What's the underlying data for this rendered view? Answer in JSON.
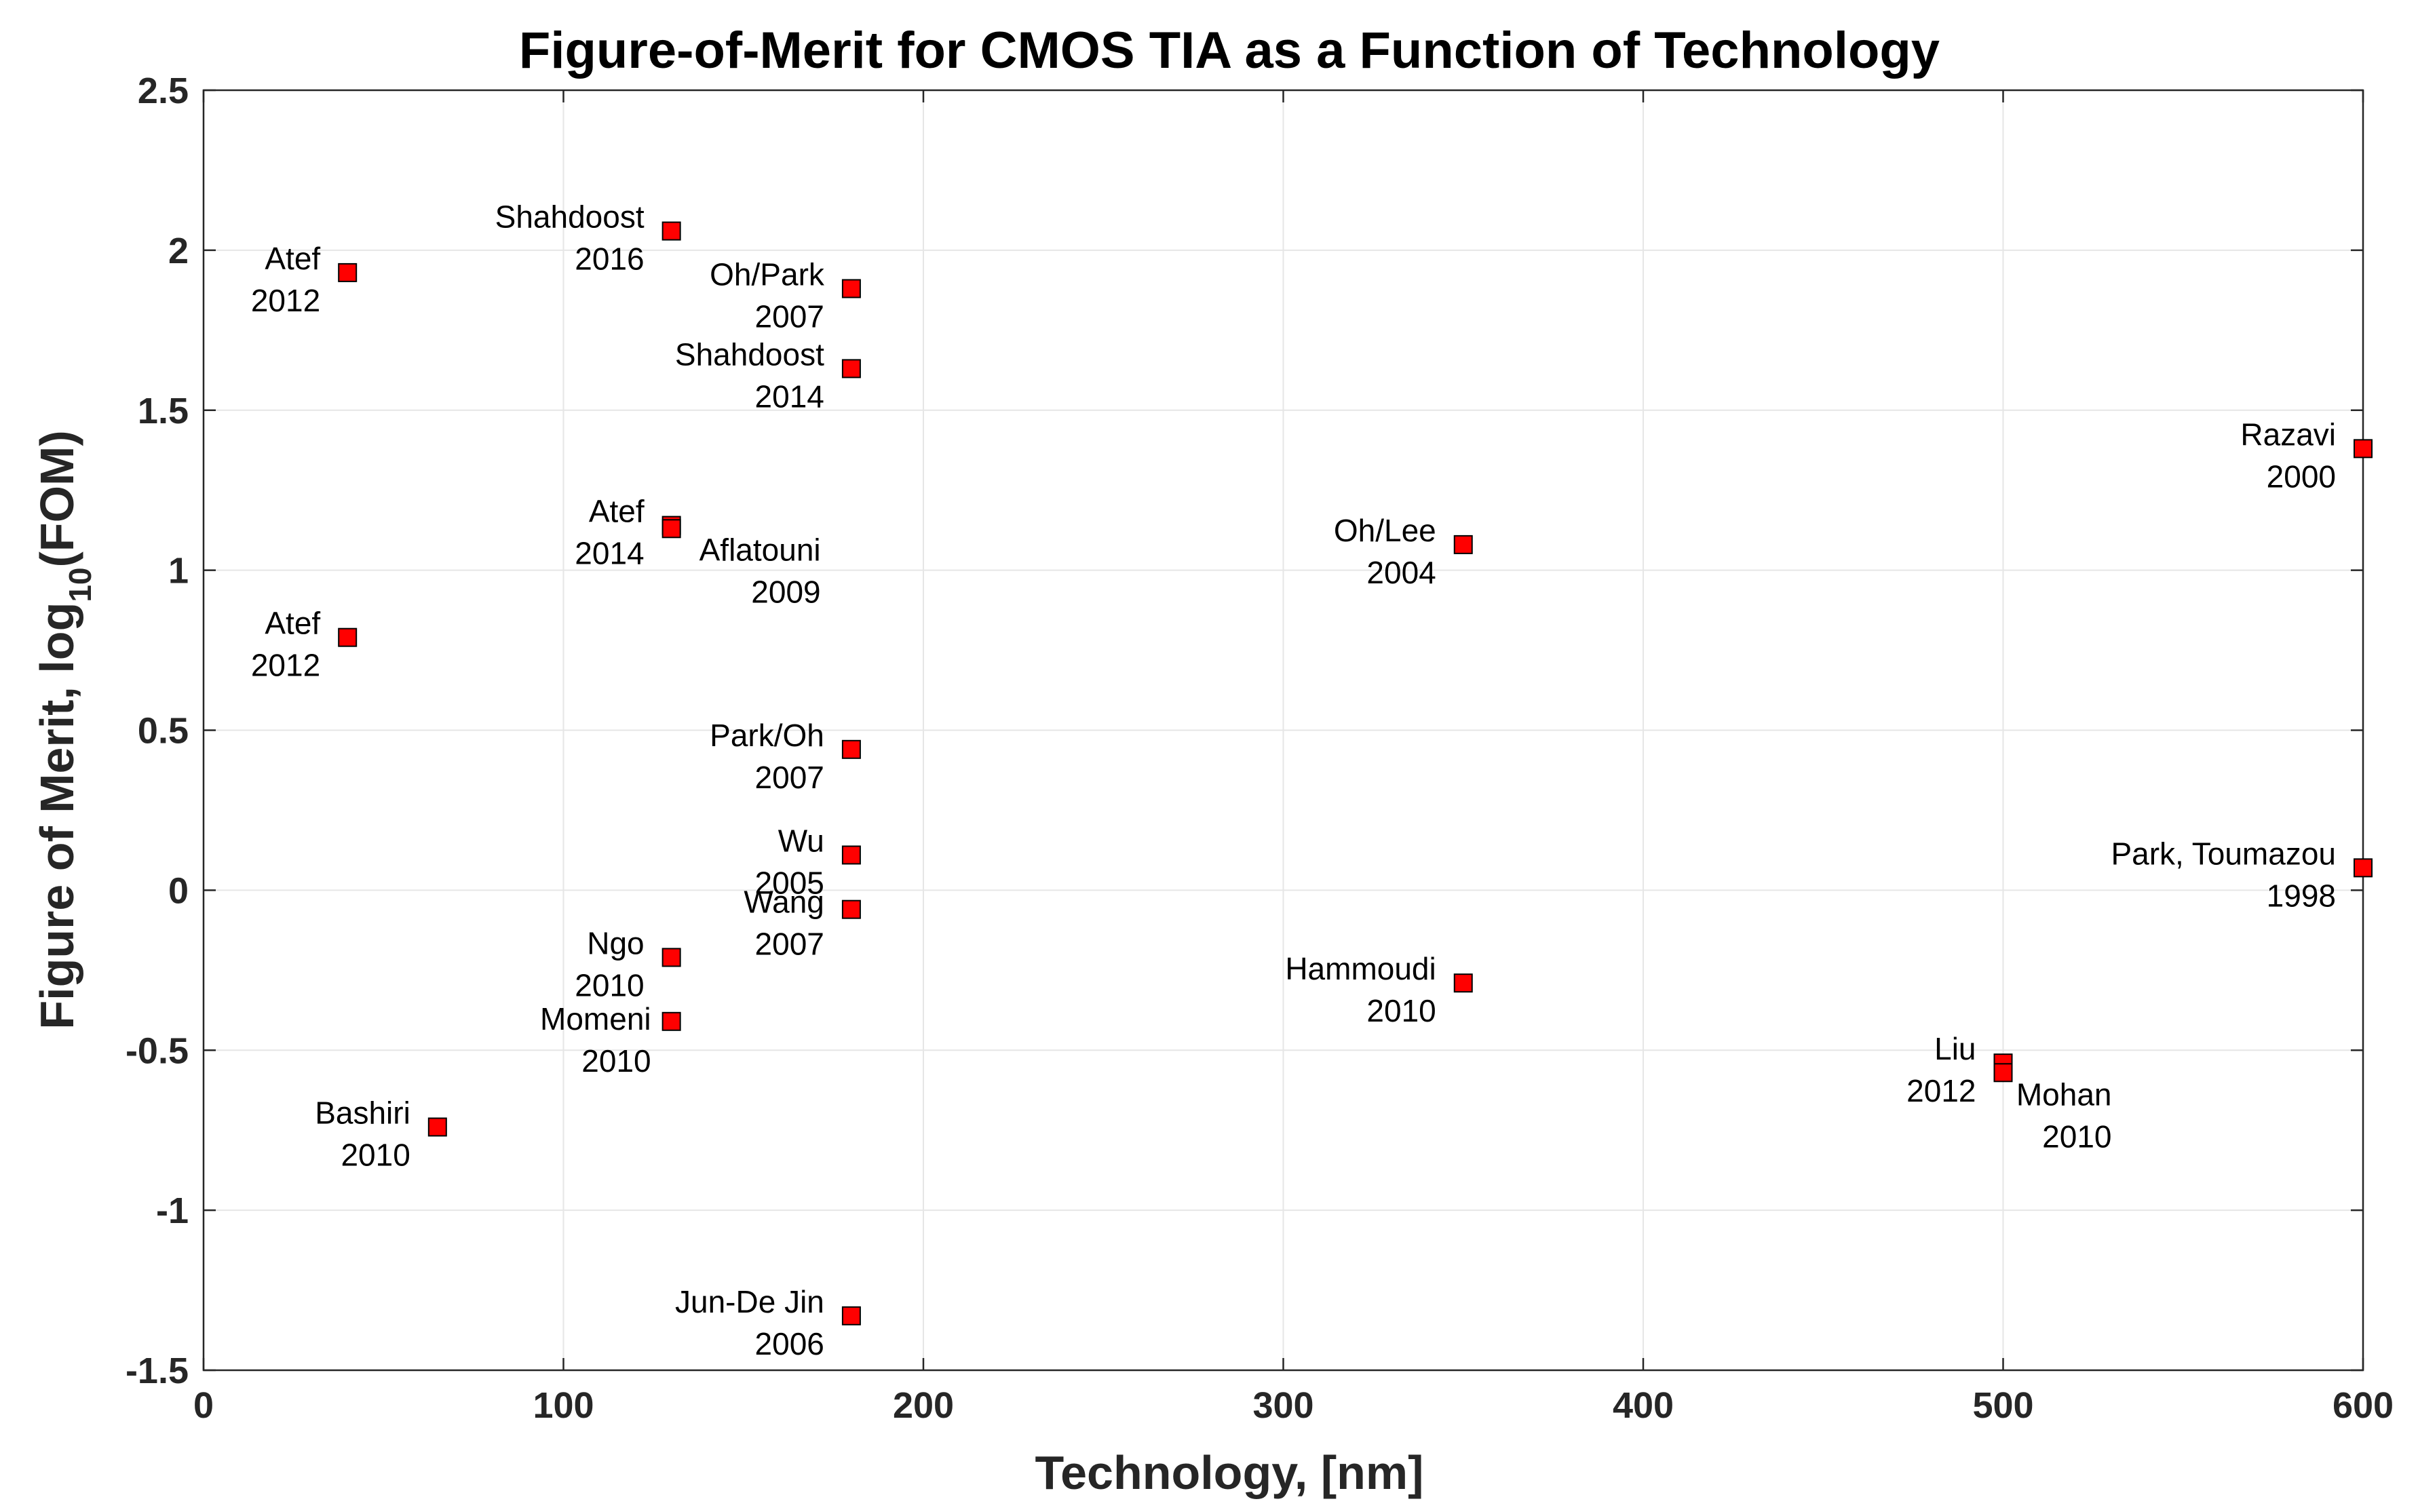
{
  "chart_data": {
    "type": "scatter",
    "title": "Figure-of-Merit for CMOS TIA as a Function of Technology",
    "xlabel": "Technology, [nm]",
    "ylabel": {
      "prefix": "Figure of Merit, log",
      "subscript": "10",
      "suffix": "(FOM)"
    },
    "xlim": [
      0,
      600
    ],
    "ylim": [
      -1.5,
      2.5
    ],
    "xticks": [
      0,
      100,
      200,
      300,
      400,
      500,
      600
    ],
    "yticks": [
      -1.5,
      -1,
      -0.5,
      0,
      0.5,
      1,
      1.5,
      2,
      2.5
    ],
    "xtick_labels": [
      "0",
      "100",
      "200",
      "300",
      "400",
      "500",
      "600"
    ],
    "ytick_labels": [
      "-1.5",
      "-1",
      "-0.5",
      "0",
      "0.5",
      "1",
      "1.5",
      "2",
      "2.5"
    ],
    "grid": true,
    "marker": "square",
    "marker_color": "#ff0000",
    "marker_edge_color": "#000000",
    "points": [
      {
        "x": 40,
        "y": 1.93,
        "name": "Atef",
        "year": "2012",
        "label_side": "left"
      },
      {
        "x": 40,
        "y": 0.79,
        "name": "Atef",
        "year": "2012",
        "label_side": "left"
      },
      {
        "x": 65,
        "y": -0.74,
        "name": "Bashiri",
        "year": "2010",
        "label_side": "left"
      },
      {
        "x": 130,
        "y": 2.06,
        "name": "Shahdoost",
        "year": "2016",
        "label_side": "left"
      },
      {
        "x": 130,
        "y": 1.14,
        "name": "Atef",
        "year": "2014",
        "label_side": "left"
      },
      {
        "x": 130,
        "y": 1.13,
        "name": "Aflatouni",
        "year": "2009",
        "label_side": "below-right"
      },
      {
        "x": 130,
        "y": -0.21,
        "name": "Ngo",
        "year": "2010",
        "label_side": "left"
      },
      {
        "x": 130,
        "y": -0.41,
        "name": "Momeni",
        "year": "2010",
        "label_side": "left-low"
      },
      {
        "x": 180,
        "y": 1.88,
        "name": "Oh/Park",
        "year": "2007",
        "label_side": "left"
      },
      {
        "x": 180,
        "y": 1.63,
        "name": "Shahdoost",
        "year": "2014",
        "label_side": "left"
      },
      {
        "x": 180,
        "y": 0.44,
        "name": "Park/Oh",
        "year": "2007",
        "label_side": "left"
      },
      {
        "x": 180,
        "y": 0.11,
        "name": "Wu",
        "year": "2005",
        "label_side": "left"
      },
      {
        "x": 180,
        "y": -0.06,
        "name": "Wang",
        "year": "2007",
        "label_side": "left-tight"
      },
      {
        "x": 180,
        "y": -1.33,
        "name": "Jun-De Jin",
        "year": "2006",
        "label_side": "left"
      },
      {
        "x": 350,
        "y": 1.08,
        "name": "Oh/Lee",
        "year": "2004",
        "label_side": "left"
      },
      {
        "x": 350,
        "y": -0.29,
        "name": "Hammoudi",
        "year": "2010",
        "label_side": "left"
      },
      {
        "x": 500,
        "y": -0.54,
        "name": "Liu",
        "year": "2012",
        "label_side": "left"
      },
      {
        "x": 500,
        "y": -0.57,
        "name": "Mohan",
        "year": "2010",
        "label_side": "below-right"
      },
      {
        "x": 600,
        "y": 1.38,
        "name": "Razavi",
        "year": "2000",
        "label_side": "left"
      },
      {
        "x": 600,
        "y": 0.07,
        "name": "Park, Toumazou",
        "year": "1998",
        "label_side": "left"
      }
    ]
  }
}
